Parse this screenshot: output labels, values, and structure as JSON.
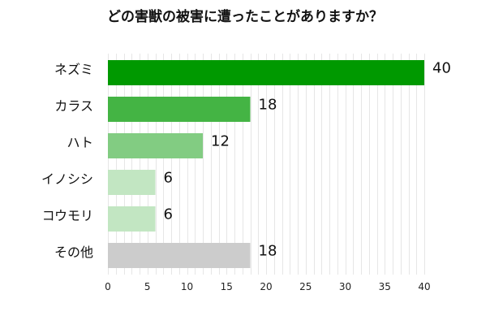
{
  "chart_data": {
    "type": "bar",
    "orientation": "horizontal",
    "title": "どの害獣の被害に遭ったことがありますか？",
    "categories": [
      "ネズミ",
      "カラス",
      "ハト",
      "イノシシ",
      "コウモリ",
      "その他"
    ],
    "values": [
      40,
      18,
      12,
      6,
      6,
      18
    ],
    "value_labels": [
      "40",
      "18",
      "12",
      "6",
      "6",
      "18"
    ],
    "bar_colors": [
      "#009900",
      "#44b444",
      "#82cc82",
      "#c2e6c2",
      "#c2e6c2",
      "#cccccc"
    ],
    "xlim": [
      0,
      40
    ],
    "x_ticks": [
      0,
      5,
      10,
      15,
      20,
      25,
      30,
      35,
      40
    ],
    "x_tick_labels": [
      "0",
      "5",
      "10",
      "15",
      "20",
      "25",
      "30",
      "35",
      "40"
    ],
    "grid": true,
    "legend": "none"
  }
}
